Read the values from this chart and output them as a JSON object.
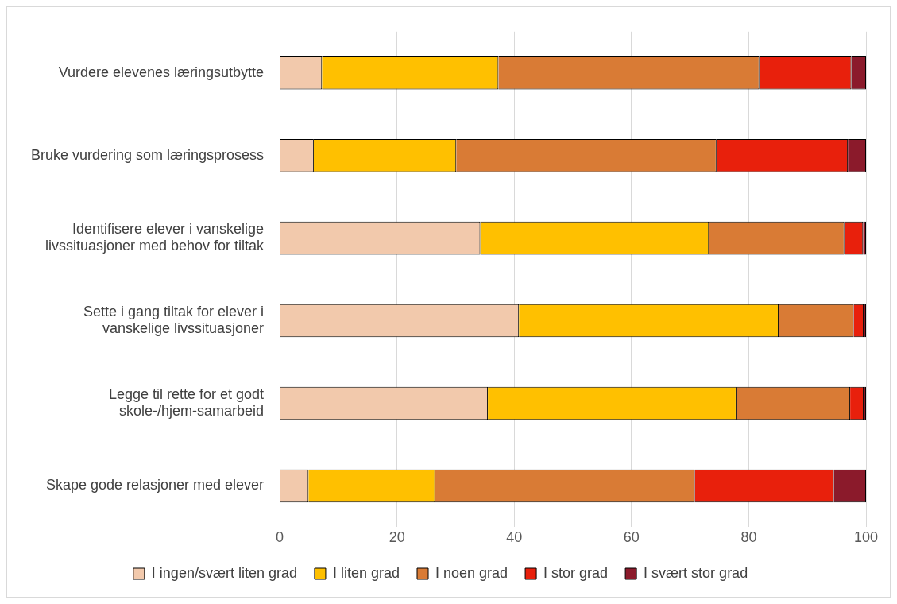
{
  "chart_data": {
    "type": "bar",
    "orientation": "horizontal",
    "stacked": true,
    "categories": [
      "Vurdere elevenes læringsutbytte",
      "Bruke vurdering som læringsprosess",
      "Identifisere elever i vanskelige livssituasjoner med behov for tiltak",
      "Sette i gang tiltak for elever i vanskelige livssituasjoner",
      "Legge til rette for et godt skole-/hjem-samarbeid",
      "Skape gode relasjoner med elever"
    ],
    "series": [
      {
        "name": "I ingen/svært liten grad",
        "color": "#f2c9ac",
        "values": [
          7.2,
          5.8,
          34.2,
          40.8,
          35.5,
          4.9
        ]
      },
      {
        "name": "I liten grad",
        "color": "#ffc000",
        "values": [
          30.1,
          24.3,
          39.0,
          44.3,
          42.4,
          21.6
        ]
      },
      {
        "name": "I noen grad",
        "color": "#d97b35",
        "values": [
          44.5,
          44.4,
          23.1,
          12.8,
          19.4,
          44.3
        ]
      },
      {
        "name": "I stor grad",
        "color": "#e8200c",
        "values": [
          15.7,
          22.4,
          3.2,
          1.7,
          2.3,
          23.7
        ]
      },
      {
        "name": "I svært stor grad",
        "color": "#8b1a2b",
        "values": [
          2.5,
          3.1,
          0.5,
          0.4,
          0.4,
          5.5
        ]
      }
    ],
    "xlim": [
      0,
      100
    ],
    "xticks": [
      0,
      20,
      40,
      60,
      80,
      100
    ],
    "grid": "x",
    "legend": "bottom"
  }
}
